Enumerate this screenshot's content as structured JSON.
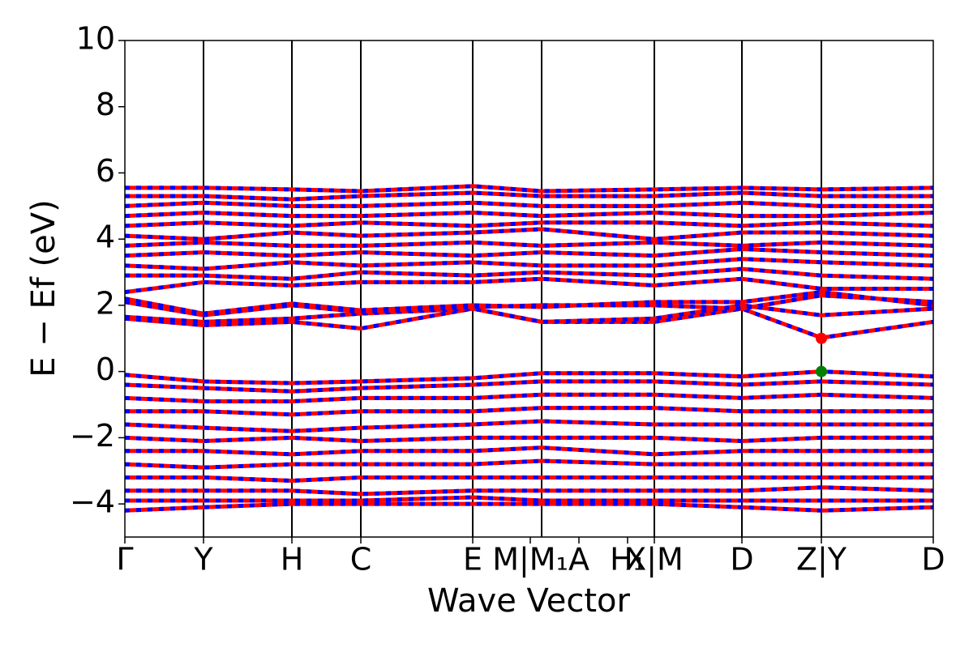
{
  "chart_data": {
    "type": "line",
    "xlabel": "Wave Vector",
    "ylabel": "E − Ef (eV)",
    "x": [
      0,
      0.97,
      2.06,
      2.91,
      4.29,
      5.14,
      6.53,
      7.61,
      8.59,
      9.97
    ],
    "xlim": [
      0,
      9.97
    ],
    "xticks": [
      {
        "value": 0,
        "label": "Γ"
      },
      {
        "value": 0.97,
        "label": "Y"
      },
      {
        "value": 2.06,
        "label": "H"
      },
      {
        "value": 2.91,
        "label": "C"
      },
      {
        "value": 4.29,
        "label": "E"
      },
      {
        "value": 5.0,
        "label": "M|M₁"
      },
      {
        "value": 5.6,
        "label": "A"
      },
      {
        "value": 6.2,
        "label": "H₁"
      },
      {
        "value": 6.53,
        "label": "X|M"
      },
      {
        "value": 7.61,
        "label": "D"
      },
      {
        "value": 8.59,
        "label": "Z|Y"
      },
      {
        "value": 9.97,
        "label": "D"
      }
    ],
    "vlines": [
      0.97,
      2.06,
      2.91,
      4.29,
      5.14,
      6.53,
      7.61,
      8.59
    ],
    "ylim": [
      -5,
      10
    ],
    "yticks": [
      {
        "value": -4,
        "label": "−4"
      },
      {
        "value": -2,
        "label": "−2"
      },
      0,
      2,
      4,
      6,
      8,
      10
    ],
    "dash_color": "#0000ff",
    "series": [
      {
        "color": "#ff0000",
        "values": [
          1.6,
          1.4,
          1.5,
          1.3,
          1.9,
          1.5,
          1.5,
          1.9,
          1.02,
          1.5
        ]
      },
      {
        "color": "#ff0000",
        "values": [
          1.65,
          1.5,
          1.6,
          1.75,
          1.9,
          1.5,
          1.6,
          2.0,
          1.7,
          1.9
        ]
      },
      {
        "color": "#ff0000",
        "values": [
          2.1,
          1.7,
          2.0,
          1.8,
          1.95,
          2.0,
          2.0,
          1.9,
          2.3,
          2.1
        ]
      },
      {
        "color": "#ff0000",
        "values": [
          2.2,
          1.75,
          2.05,
          1.85,
          2.0,
          1.95,
          2.1,
          2.1,
          2.4,
          2.0
        ]
      },
      {
        "color": "#ff0000",
        "values": [
          2.4,
          2.7,
          2.6,
          2.7,
          2.7,
          2.8,
          2.6,
          2.8,
          2.5,
          2.5
        ]
      },
      {
        "color": "#ff0000",
        "values": [
          2.9,
          2.9,
          2.8,
          3.0,
          2.9,
          3.0,
          2.9,
          3.1,
          2.9,
          2.8
        ]
      },
      {
        "color": "#ff0000",
        "values": [
          3.2,
          3.1,
          3.3,
          3.2,
          3.3,
          3.2,
          3.2,
          3.4,
          3.3,
          3.2
        ]
      },
      {
        "color": "#ff0000",
        "values": [
          3.5,
          3.6,
          3.5,
          3.6,
          3.5,
          3.6,
          3.5,
          3.7,
          3.6,
          3.5
        ]
      },
      {
        "color": "#ff0000",
        "values": [
          3.8,
          3.9,
          3.8,
          3.8,
          3.9,
          3.8,
          3.9,
          3.8,
          3.9,
          3.8
        ]
      },
      {
        "color": "#ff0000",
        "values": [
          4.1,
          4.0,
          4.2,
          4.1,
          4.2,
          4.3,
          4.0,
          4.2,
          4.2,
          4.1
        ]
      },
      {
        "color": "#ff0000",
        "values": [
          4.4,
          4.5,
          4.4,
          4.5,
          4.4,
          4.5,
          4.5,
          4.4,
          4.5,
          4.4
        ]
      },
      {
        "color": "#ff0000",
        "values": [
          4.7,
          4.8,
          4.7,
          4.7,
          4.8,
          4.7,
          4.8,
          4.7,
          4.7,
          4.8
        ]
      },
      {
        "color": "#ff0000",
        "values": [
          5.0,
          5.1,
          5.0,
          5.0,
          5.1,
          5.0,
          5.0,
          5.1,
          5.0,
          5.0
        ]
      },
      {
        "color": "#ff0000",
        "values": [
          5.3,
          5.3,
          5.2,
          5.3,
          5.4,
          5.3,
          5.3,
          5.4,
          5.3,
          5.3
        ]
      },
      {
        "color": "#ff0000",
        "values": [
          5.55,
          5.55,
          5.5,
          5.45,
          5.6,
          5.45,
          5.5,
          5.55,
          5.5,
          5.55
        ]
      },
      {
        "color": "#ff0000",
        "values": [
          -0.1,
          -0.3,
          -0.35,
          -0.3,
          -0.2,
          -0.05,
          -0.05,
          -0.15,
          0,
          -0.15
        ]
      },
      {
        "color": "#ff0000",
        "values": [
          -0.4,
          -0.5,
          -0.6,
          -0.5,
          -0.4,
          -0.3,
          -0.3,
          -0.4,
          -0.3,
          -0.4
        ]
      },
      {
        "color": "#ff0000",
        "values": [
          -0.8,
          -0.9,
          -0.9,
          -0.8,
          -0.8,
          -0.7,
          -0.7,
          -0.8,
          -0.7,
          -0.8
        ]
      },
      {
        "color": "#ff0000",
        "values": [
          -1.2,
          -1.2,
          -1.3,
          -1.2,
          -1.2,
          -1.1,
          -1.1,
          -1.2,
          -1.2,
          -1.2
        ]
      },
      {
        "color": "#ff0000",
        "values": [
          -1.6,
          -1.7,
          -1.8,
          -1.7,
          -1.6,
          -1.5,
          -1.6,
          -1.6,
          -1.6,
          -1.6
        ]
      },
      {
        "color": "#ff0000",
        "values": [
          -2.0,
          -2.1,
          -2.0,
          -2.1,
          -2.0,
          -2.0,
          -2.0,
          -2.1,
          -2.0,
          -2.0
        ]
      },
      {
        "color": "#ff0000",
        "values": [
          -2.4,
          -2.4,
          -2.5,
          -2.4,
          -2.4,
          -2.3,
          -2.5,
          -2.4,
          -2.4,
          -2.4
        ]
      },
      {
        "color": "#ff0000",
        "values": [
          -2.8,
          -2.9,
          -2.8,
          -2.8,
          -2.8,
          -2.7,
          -2.8,
          -2.8,
          -2.8,
          -2.8
        ]
      },
      {
        "color": "#ff0000",
        "values": [
          -3.2,
          -3.2,
          -3.3,
          -3.2,
          -3.2,
          -3.2,
          -3.2,
          -3.2,
          -3.2,
          -3.2
        ]
      },
      {
        "color": "#ff0000",
        "values": [
          -3.6,
          -3.6,
          -3.6,
          -3.7,
          -3.6,
          -3.6,
          -3.6,
          -3.6,
          -3.5,
          -3.6
        ]
      },
      {
        "color": "#ff0000",
        "values": [
          -3.9,
          -3.9,
          -3.9,
          -3.9,
          -3.8,
          -3.9,
          -3.9,
          -3.9,
          -3.9,
          -3.9
        ]
      },
      {
        "color": "#ff0000",
        "values": [
          -4.2,
          -4.1,
          -4.0,
          -4.0,
          -4.0,
          -4.0,
          -4.0,
          -4.1,
          -4.2,
          -4.1
        ]
      }
    ],
    "points": [
      {
        "x": 8.59,
        "y": 1.0,
        "color": "#ff0000"
      },
      {
        "x": 8.59,
        "y": 0.0,
        "color": "#008000"
      }
    ]
  }
}
